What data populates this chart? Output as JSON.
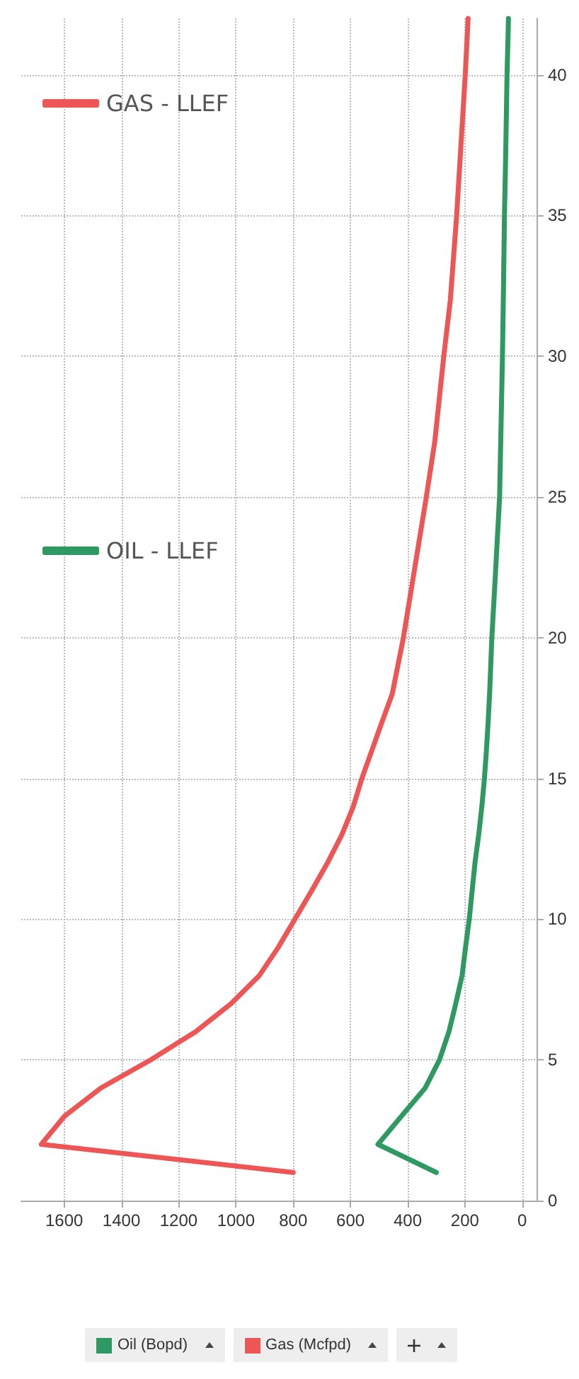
{
  "chart_data": {
    "type": "line",
    "orientation": "horizontal",
    "x": [
      1,
      2,
      3,
      4,
      5,
      6,
      7,
      8,
      9,
      10,
      11,
      12,
      13,
      14,
      15,
      16,
      17,
      18,
      20,
      22,
      25,
      27,
      30,
      32,
      35,
      37,
      40,
      42
    ],
    "series": [
      {
        "name": "OIL - LLEF",
        "color": "#2e9960",
        "values": [
          300,
          504,
          422,
          339,
          289,
          256,
          232,
          210,
          198,
          185,
          175,
          165,
          152,
          141,
          132,
          125,
          119,
          114,
          106,
          95,
          79,
          75,
          69,
          66,
          62,
          58,
          53,
          48
        ]
      },
      {
        "name": "GAS - LLEF",
        "color": "#ee5555",
        "values": [
          800,
          1680,
          1599,
          1472,
          1298,
          1141,
          1017,
          918,
          852,
          794,
          736,
          680,
          630,
          590,
          560,
          525,
          490,
          454,
          415,
          383,
          335,
          305,
          274,
          251,
          229,
          217,
          199,
          189
        ]
      }
    ],
    "xlim": [
      1750,
      -50
    ],
    "xticks": [
      1600,
      1400,
      1200,
      1000,
      800,
      600,
      400,
      200,
      0
    ],
    "ylim": [
      0,
      42
    ],
    "yticks": [
      0,
      5,
      10,
      15,
      20,
      25,
      30,
      35,
      40
    ],
    "grid": true,
    "legend": "top left",
    "marker": "none",
    "line_style": "solid",
    "annotations": [
      "Oil (Bopd)",
      "Gas (Mcfpd)"
    ]
  }
}
